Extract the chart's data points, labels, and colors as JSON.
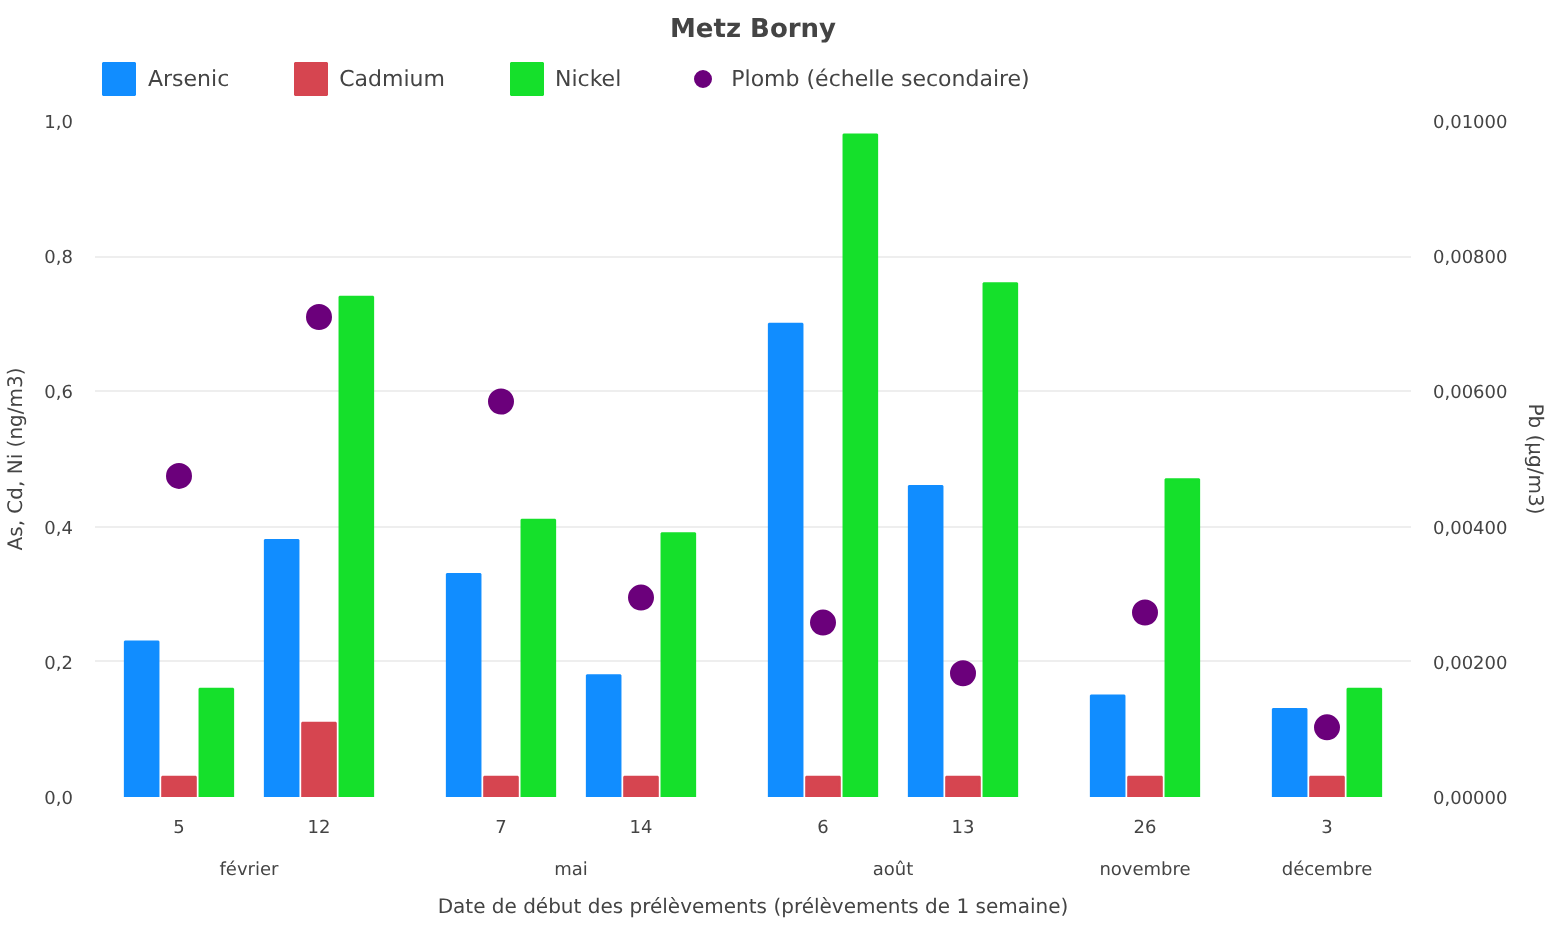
{
  "chart_data": {
    "type": "bar",
    "title": "Metz Borny",
    "xlabel": "Date de début des prélèvements (prélèvements de 1 semaine)",
    "ylabel": "As, Cd, Ni (ng/m3)",
    "y2label": "Pb (µg/m3)",
    "categories": [
      "5",
      "12",
      "7",
      "14",
      "6",
      "13",
      "26",
      "3"
    ],
    "annotations": [
      "février",
      "mai",
      "août",
      "novembre",
      "décembre"
    ],
    "series": [
      {
        "name": "Arsenic",
        "color": "#118dff",
        "values": [
          0.23,
          0.38,
          0.33,
          0.18,
          0.7,
          0.46,
          0.15,
          0.13
        ]
      },
      {
        "name": "Cadmium",
        "color": "#d64550",
        "values": [
          0.03,
          0.11,
          0.03,
          0.03,
          0.03,
          0.03,
          0.03,
          0.03
        ]
      },
      {
        "name": "Nickel",
        "color": "#15e02b",
        "values": [
          0.16,
          0.74,
          0.41,
          0.39,
          0.98,
          0.76,
          0.47,
          0.16
        ]
      },
      {
        "name": "Plomb (échelle secondaire)",
        "type": "scatter",
        "axis": "y2",
        "color": "#6b007b",
        "values": [
          0.00475,
          0.0071,
          0.00585,
          0.00295,
          0.00258,
          0.00183,
          0.00273,
          0.00103
        ]
      }
    ],
    "ylim": [
      0,
      1.0
    ],
    "yticks": [
      {
        "value": 0,
        "label": "0,0"
      },
      {
        "value": 0.2,
        "label": "0,2"
      },
      {
        "value": 0.4,
        "label": "0,4"
      },
      {
        "value": 0.6,
        "label": "0,6"
      },
      {
        "value": 0.8,
        "label": "0,8"
      },
      {
        "value": 1.0,
        "label": "1,0"
      }
    ],
    "y2lim": [
      0,
      0.01
    ],
    "y2ticks": [
      {
        "value": 0,
        "label": "0,00000"
      },
      {
        "value": 0.002,
        "label": "0,00200"
      },
      {
        "value": 0.004,
        "label": "0,00400"
      },
      {
        "value": 0.006,
        "label": "0,00600"
      },
      {
        "value": 0.008,
        "label": "0,00800"
      },
      {
        "value": 0.01,
        "label": "0,01000"
      }
    ],
    "grid": "y",
    "legend": "top left",
    "marker": "circle"
  }
}
